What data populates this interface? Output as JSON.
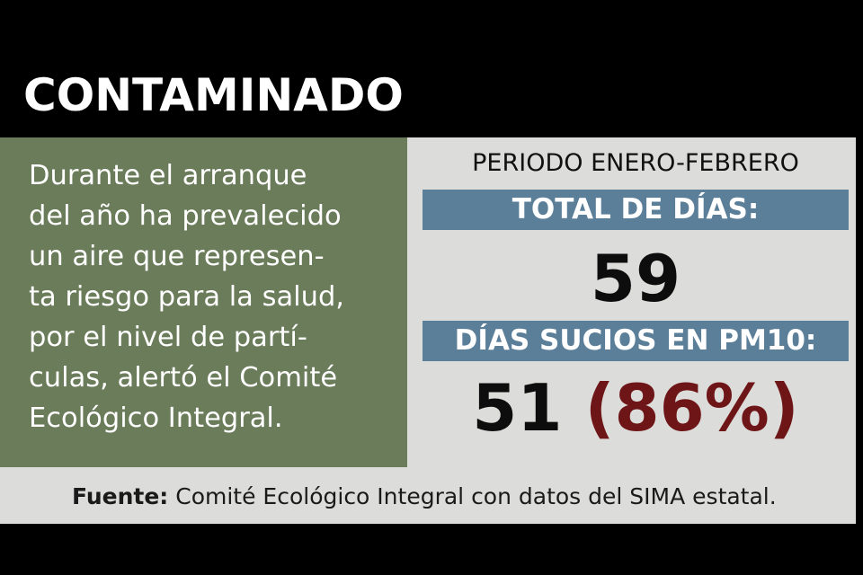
{
  "header": {
    "title": "CONTAMINADO"
  },
  "intro": {
    "lines": [
      "Durante el arranque",
      "del año ha prevalecido",
      "un aire que represen-",
      "ta riesgo para la salud,",
      "por el nivel de partí-",
      "culas, alertó el Comité",
      "Ecológico Integral."
    ]
  },
  "stats": {
    "period": "PERIODO ENERO-FEBRERO",
    "total_label": "TOTAL DE DÍAS:",
    "total_value": "59",
    "dirty_label": "DÍAS SUCIOS EN PM10:",
    "dirty_value": "51",
    "dirty_percent": "(86%)"
  },
  "source": {
    "label": "Fuente:",
    "text": " Comité Ecológico Integral con datos del SIMA estatal."
  },
  "colors": {
    "background": "#000000",
    "panel_green": "#6b7c5a",
    "content_bg": "#dcddda",
    "band_blue": "#5b7e99",
    "percent_red": "#6e1518"
  }
}
